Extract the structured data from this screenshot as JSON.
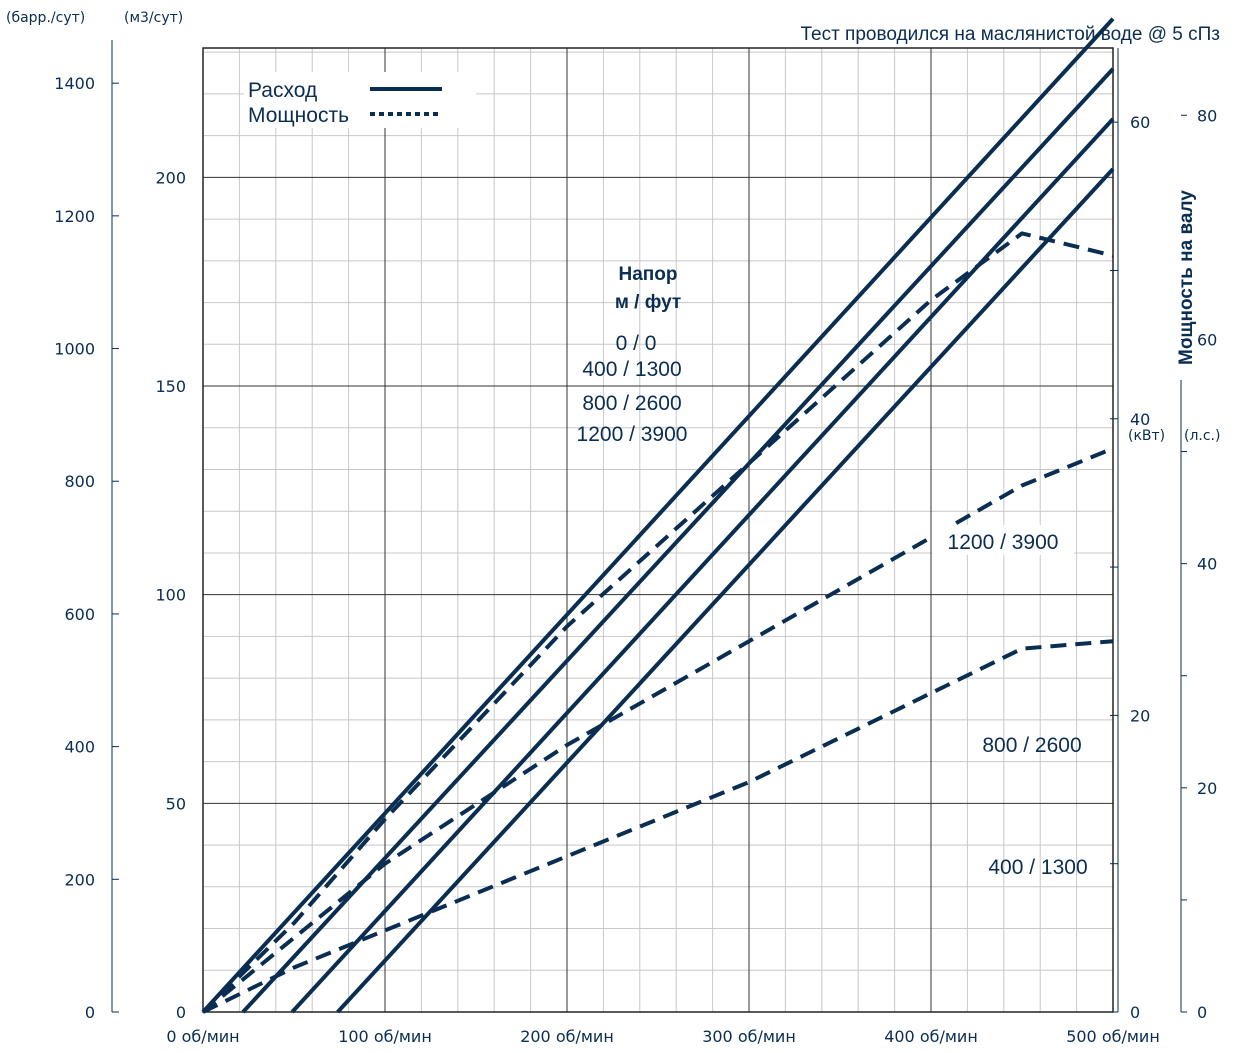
{
  "chart_data": {
    "type": "line",
    "note": "Тест проводился на маслянистой воде @ 5 сПз",
    "x_axis": {
      "ticks": [
        "0 об/мин",
        "100 об/мин",
        "200 об/мин",
        "300 об/мин",
        "400 об/мин",
        "500 об/мин"
      ],
      "range": [
        0,
        500
      ]
    },
    "y_axis_left_outer": {
      "unit": "(барр./сут)",
      "ticks": [
        "0",
        "200",
        "400",
        "600",
        "800",
        "1000",
        "1200",
        "1400"
      ],
      "range": [
        0,
        1453
      ]
    },
    "y_axis_left_inner": {
      "unit": "(м3/сут)",
      "ticks": [
        "0",
        "50",
        "100",
        "150",
        "200"
      ],
      "range": [
        0,
        231
      ]
    },
    "y_axis_right_inner": {
      "unit": "(кВт)",
      "ticks": [
        "0",
        "20",
        "40",
        "60"
      ],
      "range": [
        0,
        65
      ]
    },
    "y_axis_right_outer": {
      "unit": "(л.с.)",
      "ticks": [
        "0",
        "20",
        "40",
        "60",
        "80"
      ],
      "range": [
        0,
        86
      ]
    },
    "y_axis_right_title": "Мощность на валу",
    "legend": {
      "position": "top-left",
      "items": [
        {
          "label": "Расход",
          "style": "solid"
        },
        {
          "label": "Мощность",
          "style": "dotted"
        }
      ]
    },
    "head_label_title": [
      "Напор",
      "м / фут"
    ],
    "flow_series": [
      {
        "name": "0 / 0",
        "x": [
          0,
          500
        ],
        "y_m3": [
          0,
          238
        ]
      },
      {
        "name": "400 / 1300",
        "x": [
          22,
          500
        ],
        "y_m3": [
          0,
          226
        ]
      },
      {
        "name": "800 / 2600",
        "x": [
          49,
          500
        ],
        "y_m3": [
          0,
          214
        ]
      },
      {
        "name": "1200 / 3900",
        "x": [
          74,
          500
        ],
        "y_m3": [
          0,
          202
        ]
      }
    ],
    "power_series": [
      {
        "name": "400 / 1300",
        "x": [
          0,
          25,
          50,
          100,
          150,
          200,
          250,
          300,
          350,
          400,
          450,
          500
        ],
        "y_kw": [
          0,
          1.5,
          3,
          5.5,
          8,
          10.5,
          13,
          15.5,
          18.5,
          21.5,
          24.5,
          25
        ]
      },
      {
        "name": "800 / 2600",
        "x": [
          0,
          25,
          50,
          100,
          150,
          200,
          250,
          300,
          350,
          400,
          450,
          500
        ],
        "y_kw": [
          0,
          2.5,
          5,
          10,
          14,
          18,
          21.5,
          25,
          28.5,
          32,
          35.5,
          38
        ]
      },
      {
        "name": "1200 / 3900",
        "x": [
          0,
          25,
          50,
          100,
          150,
          200,
          250,
          300,
          350,
          400,
          450,
          500
        ],
        "y_kw": [
          0,
          3,
          6,
          13,
          19.5,
          26,
          31.5,
          37,
          42.5,
          48,
          52.5,
          51
        ]
      }
    ],
    "head_labels": [
      "0 / 0",
      "400 / 1300",
      "800 / 2600",
      "1200 / 3900"
    ],
    "power_labels": [
      "1200 / 3900",
      "800 / 2600",
      "400 / 1300"
    ],
    "color": "#0a2d52",
    "grid": true
  }
}
